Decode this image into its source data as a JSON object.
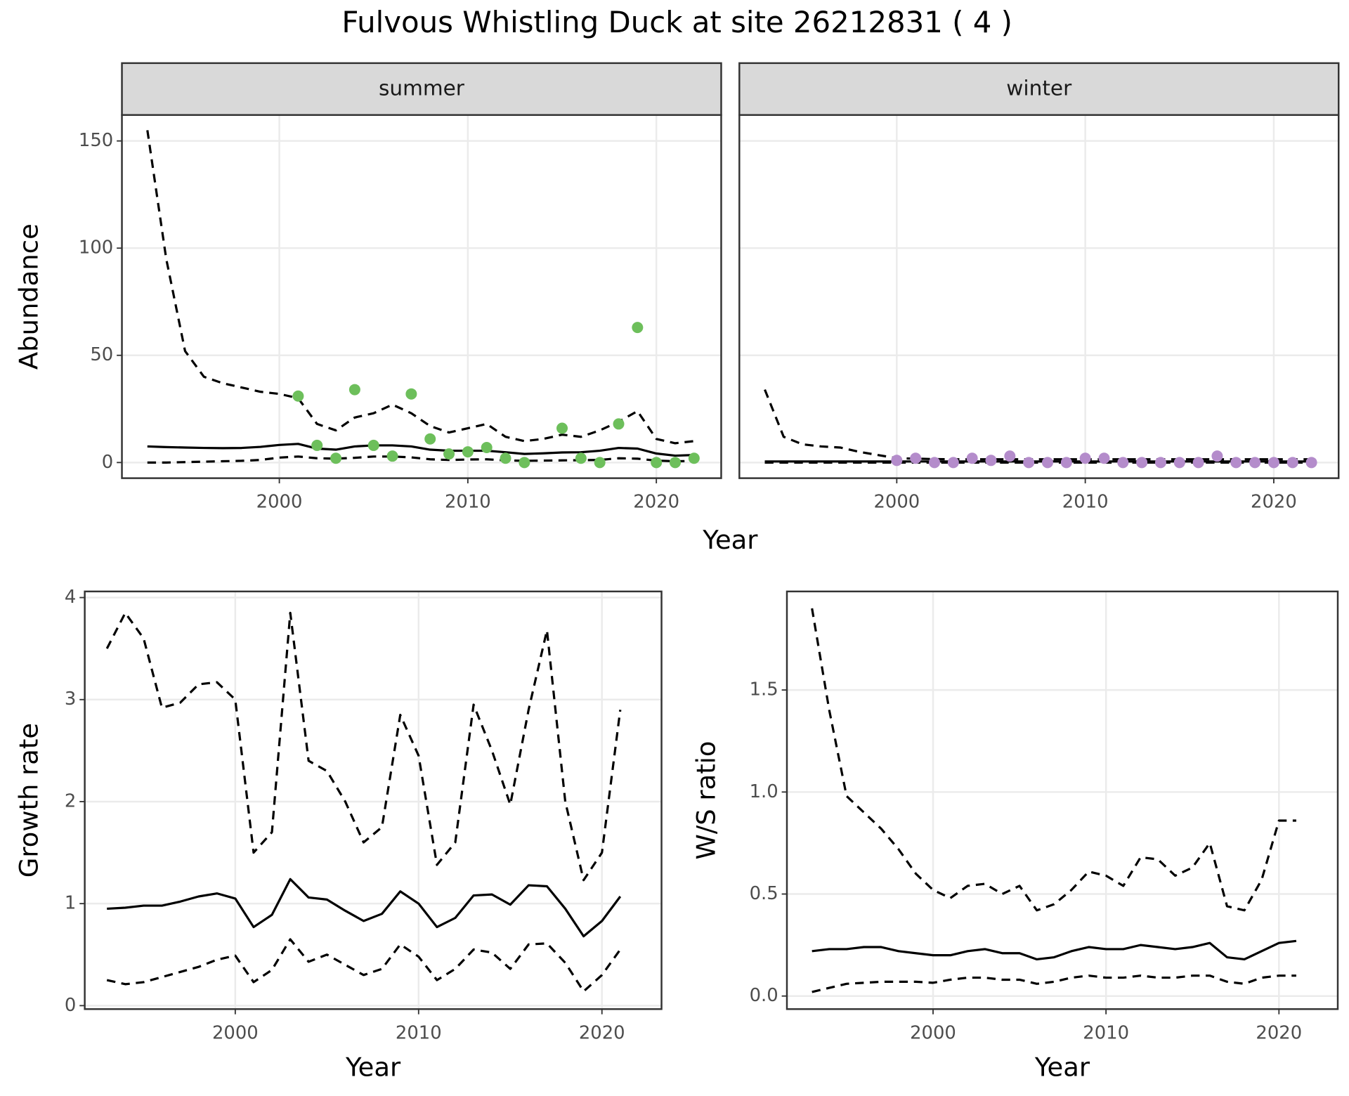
{
  "title": "Fulvous Whistling Duck at site 26212831 ( 4 )",
  "chart_data": [
    {
      "type": "facet",
      "xlabel": "Year",
      "ylabel": "Abundance",
      "xlim": [
        1991.65,
        2023.44
      ],
      "xticks": [
        2000,
        2010,
        2020
      ],
      "ylim": [
        -7.3,
        162.1
      ],
      "yticks": [
        0,
        50,
        100,
        150
      ],
      "grid": true,
      "panels": [
        {
          "label": "summer",
          "x": [
            1993,
            1994,
            1995,
            1996,
            1997,
            1998,
            1999,
            2000,
            2001,
            2002,
            2003,
            2004,
            2005,
            2006,
            2007,
            2008,
            2009,
            2010,
            2011,
            2012,
            2013,
            2014,
            2015,
            2016,
            2017,
            2018,
            2019,
            2020,
            2021,
            2022
          ],
          "series": [
            {
              "mark": "line",
              "dash": "dashed",
              "color": "#000000",
              "values": [
                155,
                95,
                52,
                40,
                37,
                35,
                33,
                32,
                30,
                18,
                15,
                21,
                23,
                27,
                23,
                17,
                14,
                16,
                18,
                12,
                10,
                11,
                13,
                12,
                15,
                19,
                24,
                11,
                9,
                10
              ]
            },
            {
              "mark": "line",
              "dash": "solid",
              "color": "#000000",
              "values": [
                7.5,
                7.2,
                7,
                6.8,
                6.7,
                6.8,
                7.3,
                8.2,
                8.7,
                6.5,
                6,
                7.5,
                8,
                8,
                7.5,
                6,
                5.5,
                5.5,
                5.5,
                4.8,
                4,
                4.3,
                4.7,
                4.8,
                5.5,
                6.8,
                6.5,
                4.2,
                3.2,
                3.5
              ]
            },
            {
              "mark": "line",
              "dash": "dashed",
              "color": "#000000",
              "values": [
                0,
                0,
                0.2,
                0.4,
                0.6,
                0.8,
                1.2,
                2.3,
                2.8,
                2,
                1.8,
                2.2,
                2.8,
                2.8,
                2.4,
                1.5,
                1.2,
                1.4,
                1.5,
                1,
                0.8,
                0.9,
                1,
                1.1,
                1.2,
                2,
                1.8,
                0.9,
                0.6,
                0.7
              ]
            },
            {
              "mark": "point",
              "color": "#6dbf5b",
              "x": [
                2001,
                2002,
                2003,
                2004,
                2005,
                2006,
                2007,
                2008,
                2009,
                2010,
                2011,
                2012,
                2013,
                2015,
                2016,
                2017,
                2018,
                2019,
                2020,
                2021,
                2022
              ],
              "values": [
                31,
                8,
                2,
                34,
                8,
                3,
                32,
                11,
                4,
                5,
                7,
                2,
                0,
                16,
                2,
                0,
                18,
                63,
                0,
                0,
                2
              ]
            }
          ]
        },
        {
          "label": "winter",
          "x": [
            1993,
            1994,
            1995,
            1996,
            1997,
            1998,
            1999,
            2000,
            2001,
            2002,
            2003,
            2004,
            2005,
            2006,
            2007,
            2008,
            2009,
            2010,
            2011,
            2012,
            2013,
            2014,
            2015,
            2016,
            2017,
            2018,
            2019,
            2020,
            2021,
            2022
          ],
          "series": [
            {
              "mark": "line",
              "dash": "dashed",
              "color": "#000000",
              "values": [
                34,
                12,
                8.5,
                7.5,
                7,
                5,
                3.5,
                2,
                1.8,
                1.6,
                1.5,
                1.5,
                1.5,
                1.5,
                1.5,
                1.5,
                1.5,
                1.5,
                1.5,
                1.5,
                1.5,
                1.5,
                1.5,
                1.5,
                1.5,
                1.5,
                1.5,
                1.5,
                1.5,
                1.5
              ]
            },
            {
              "mark": "line",
              "dash": "solid",
              "color": "#000000",
              "values": [
                0.5,
                0.5,
                0.5,
                0.5,
                0.5,
                0.5,
                0.5,
                0.5,
                0.5,
                0.5,
                0.5,
                0.5,
                0.5,
                0.5,
                0.5,
                0.5,
                0.5,
                0.5,
                0.5,
                0.5,
                0.5,
                0.5,
                0.5,
                0.5,
                0.5,
                0.5,
                0.5,
                0.5,
                0.5,
                0.5
              ]
            },
            {
              "mark": "line",
              "dash": "dashed",
              "color": "#000000",
              "values": [
                0,
                0,
                0,
                0,
                0,
                0,
                0,
                0,
                0,
                0,
                0,
                0,
                0,
                0,
                0,
                0,
                0,
                0,
                0,
                0,
                0,
                0,
                0,
                0,
                0,
                0,
                0,
                0,
                0,
                0
              ]
            },
            {
              "mark": "point",
              "color": "#b48ccb",
              "x": [
                2000,
                2001,
                2002,
                2003,
                2004,
                2005,
                2006,
                2007,
                2008,
                2009,
                2010,
                2011,
                2012,
                2013,
                2014,
                2015,
                2016,
                2017,
                2018,
                2019,
                2020,
                2021,
                2022
              ],
              "values": [
                1,
                2,
                0,
                0,
                2,
                1,
                3,
                0,
                0,
                0,
                2,
                2,
                0,
                0,
                0,
                0,
                0,
                3,
                0,
                0,
                0,
                0,
                0
              ]
            }
          ]
        }
      ]
    },
    {
      "type": "line",
      "xlabel": "Year",
      "ylabel": "Growth rate",
      "xlim": [
        1991.79,
        2023.25
      ],
      "xticks": [
        2000,
        2010,
        2020
      ],
      "ylim": [
        -0.034,
        4.06
      ],
      "yticks": [
        0,
        1,
        2,
        3,
        4
      ],
      "grid": true,
      "x": [
        1993,
        1994,
        1995,
        1996,
        1997,
        1998,
        1999,
        2000,
        2001,
        2002,
        2003,
        2004,
        2005,
        2006,
        2007,
        2008,
        2009,
        2010,
        2011,
        2012,
        2013,
        2014,
        2015,
        2016,
        2017,
        2018,
        2019,
        2020,
        2021
      ],
      "series": [
        {
          "mark": "line",
          "dash": "dashed",
          "color": "#000000",
          "values": [
            3.5,
            3.85,
            3.6,
            2.92,
            2.97,
            3.15,
            3.17,
            3.0,
            1.5,
            1.7,
            3.85,
            2.4,
            2.3,
            2.0,
            1.6,
            1.75,
            2.85,
            2.45,
            1.38,
            1.6,
            2.95,
            2.5,
            1.97,
            2.9,
            3.68,
            2.0,
            1.23,
            1.5,
            2.9
          ]
        },
        {
          "mark": "line",
          "dash": "solid",
          "color": "#000000",
          "values": [
            0.95,
            0.96,
            0.98,
            0.98,
            1.02,
            1.07,
            1.1,
            1.05,
            0.77,
            0.89,
            1.24,
            1.06,
            1.04,
            0.93,
            0.83,
            0.9,
            1.12,
            1.0,
            0.77,
            0.86,
            1.08,
            1.09,
            0.99,
            1.18,
            1.17,
            0.95,
            0.68,
            0.83,
            1.07
          ]
        },
        {
          "mark": "line",
          "dash": "dashed",
          "color": "#000000",
          "values": [
            0.25,
            0.21,
            0.23,
            0.28,
            0.33,
            0.38,
            0.45,
            0.49,
            0.23,
            0.35,
            0.65,
            0.43,
            0.5,
            0.4,
            0.3,
            0.36,
            0.6,
            0.48,
            0.25,
            0.36,
            0.55,
            0.52,
            0.36,
            0.6,
            0.61,
            0.42,
            0.14,
            0.3,
            0.55
          ]
        }
      ]
    },
    {
      "type": "line",
      "xlabel": "Year",
      "ylabel": "W/S ratio",
      "xlim": [
        1991.55,
        2023.4
      ],
      "xticks": [
        2000,
        2010,
        2020
      ],
      "ylim": [
        -0.064,
        1.983
      ],
      "yticks": [
        {
          "value": 0,
          "label": "0.0"
        },
        0.5,
        {
          "value": 1,
          "label": "1.0"
        },
        1.5
      ],
      "grid": true,
      "x": [
        1993,
        1994,
        1995,
        1996,
        1997,
        1998,
        1999,
        2000,
        2001,
        2002,
        2003,
        2004,
        2005,
        2006,
        2007,
        2008,
        2009,
        2010,
        2011,
        2012,
        2013,
        2014,
        2015,
        2016,
        2017,
        2018,
        2019,
        2020,
        2021
      ],
      "series": [
        {
          "mark": "line",
          "dash": "dashed",
          "color": "#000000",
          "values": [
            1.9,
            1.4,
            0.98,
            0.9,
            0.82,
            0.72,
            0.6,
            0.52,
            0.48,
            0.54,
            0.55,
            0.5,
            0.54,
            0.42,
            0.45,
            0.52,
            0.61,
            0.59,
            0.54,
            0.68,
            0.67,
            0.59,
            0.63,
            0.75,
            0.44,
            0.42,
            0.57,
            0.86,
            0.86
          ]
        },
        {
          "mark": "line",
          "dash": "solid",
          "color": "#000000",
          "values": [
            0.22,
            0.23,
            0.23,
            0.24,
            0.24,
            0.22,
            0.21,
            0.2,
            0.2,
            0.22,
            0.23,
            0.21,
            0.21,
            0.18,
            0.19,
            0.22,
            0.24,
            0.23,
            0.23,
            0.25,
            0.24,
            0.23,
            0.24,
            0.26,
            0.19,
            0.18,
            0.22,
            0.26,
            0.27
          ]
        },
        {
          "mark": "line",
          "dash": "dashed",
          "color": "#000000",
          "values": [
            0.02,
            0.04,
            0.06,
            0.065,
            0.07,
            0.07,
            0.07,
            0.065,
            0.08,
            0.09,
            0.09,
            0.08,
            0.08,
            0.06,
            0.07,
            0.09,
            0.1,
            0.09,
            0.09,
            0.1,
            0.09,
            0.09,
            0.1,
            0.1,
            0.07,
            0.06,
            0.09,
            0.1,
            0.1
          ]
        }
      ]
    }
  ]
}
